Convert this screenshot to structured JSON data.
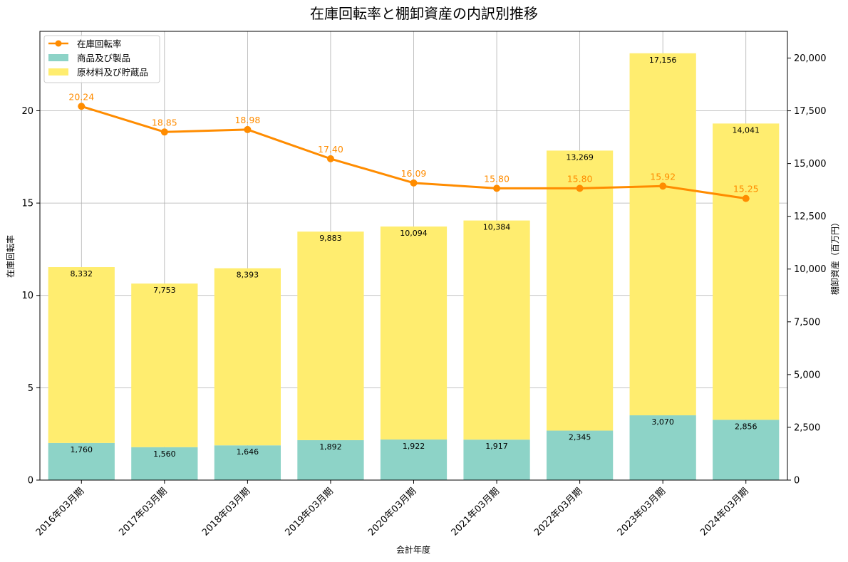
{
  "chart_data": {
    "type": "bar",
    "title": "在庫回転率と棚卸資産の内訳別推移",
    "xlabel": "会計年度",
    "ylabel_left": "在庫回転率",
    "ylabel_right": "棚卸資産（百万円）",
    "categories": [
      "2016年03月期",
      "2017年03月期",
      "2018年03月期",
      "2019年03月期",
      "2020年03月期",
      "2021年03月期",
      "2022年03月期",
      "2023年03月期",
      "2024年03月期"
    ],
    "ylim_left": [
      0,
      24.3
    ],
    "ylim_right": [
      0,
      21265
    ],
    "yticks_left": [
      0,
      5,
      10,
      15,
      20
    ],
    "yticks_right": [
      0,
      2500,
      5000,
      7500,
      10000,
      12500,
      15000,
      17500,
      20000
    ],
    "ytick_labels_left": [
      "0",
      "5",
      "10",
      "15",
      "20"
    ],
    "ytick_labels_right": [
      "0",
      "2,500",
      "5,000",
      "7,500",
      "10,000",
      "12,500",
      "15,000",
      "17,500",
      "20,000"
    ],
    "grid": true,
    "legend_position": "top-left",
    "series": [
      {
        "name": "商品及び製品",
        "type": "bar",
        "axis": "right",
        "color": "#8dd3c7",
        "values": [
          1760,
          1560,
          1646,
          1892,
          1922,
          1917,
          2345,
          3070,
          2856
        ],
        "labels": [
          "1,760",
          "1,560",
          "1,646",
          "1,892",
          "1,922",
          "1,917",
          "2,345",
          "3,070",
          "2,856"
        ]
      },
      {
        "name": "原材料及び貯蔵品",
        "type": "bar",
        "axis": "right",
        "stacked_on": "商品及び製品",
        "color": "#ffed6f",
        "values": [
          8332,
          7753,
          8393,
          9883,
          10094,
          10384,
          13269,
          17156,
          14041
        ],
        "labels": [
          "8,332",
          "7,753",
          "8,393",
          "9,883",
          "10,094",
          "10,384",
          "13,269",
          "17,156",
          "14,041"
        ]
      },
      {
        "name": "在庫回転率",
        "type": "line",
        "axis": "left",
        "color": "#ff8c00",
        "values": [
          20.24,
          18.85,
          18.98,
          17.4,
          16.09,
          15.8,
          15.8,
          15.92,
          15.25
        ],
        "labels": [
          "20.24",
          "18.85",
          "18.98",
          "17.40",
          "16.09",
          "15.80",
          "15.80",
          "15.92",
          "15.25"
        ]
      }
    ]
  }
}
